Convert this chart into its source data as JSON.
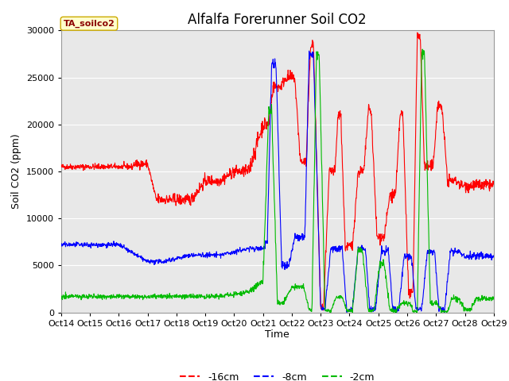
{
  "title": "Alfalfa Forerunner Soil CO2",
  "ylabel": "Soil CO2 (ppm)",
  "xlabel": "Time",
  "tag_label": "TA_soilco2",
  "ylim": [
    0,
    30000
  ],
  "legend": [
    "-16cm",
    "-8cm",
    "-2cm"
  ],
  "legend_colors": [
    "#ff0000",
    "#0000ff",
    "#00bb00"
  ],
  "x_tick_labels": [
    "Oct 14",
    "Oct 15",
    "Oct 16",
    "Oct 17",
    "Oct 18",
    "Oct 19",
    "Oct 20",
    "Oct 21",
    "Oct 22",
    "Oct 23",
    "Oct 24",
    "Oct 25",
    "Oct 26",
    "Oct 27",
    "Oct 28",
    "Oct 29"
  ],
  "background_color": "#ffffff",
  "plot_bg_color": "#e8e8e8",
  "grid_color": "#ffffff",
  "title_fontsize": 12,
  "axis_fontsize": 9,
  "tick_fontsize": 8,
  "yticks": [
    0,
    5000,
    10000,
    15000,
    20000,
    25000,
    30000
  ]
}
